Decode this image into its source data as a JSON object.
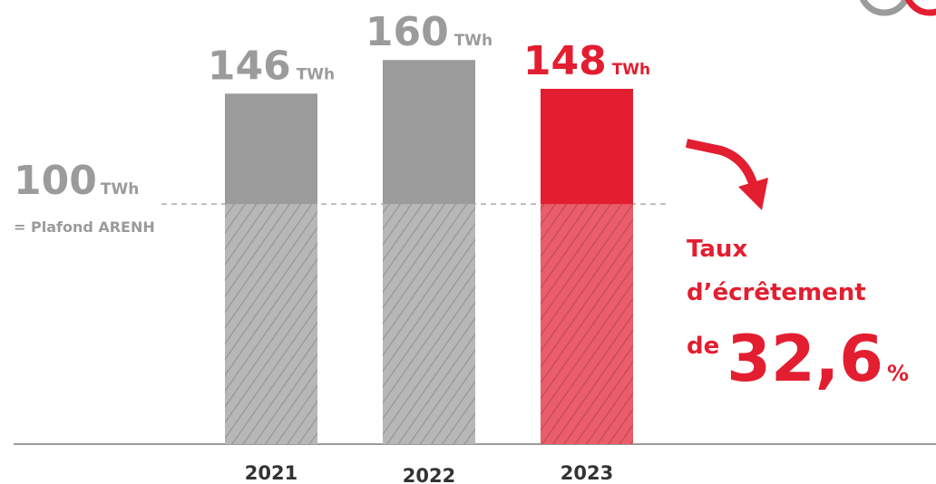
{
  "chart_data": {
    "type": "bar",
    "categories": [
      "2021",
      "2022",
      "2023"
    ],
    "values": [
      146,
      160,
      148
    ],
    "colors": [
      "#9b9b9b",
      "#9b9b9b",
      "#e31e30"
    ],
    "unit": "TWh",
    "ylim": [
      0,
      185
    ],
    "reference": {
      "value": 100,
      "label": "= Plafond ARENH"
    },
    "annotation": {
      "lines": [
        "Taux",
        "d’écrêtement"
      ],
      "prefix": "de",
      "figure": "32,6",
      "unit": "%"
    }
  }
}
